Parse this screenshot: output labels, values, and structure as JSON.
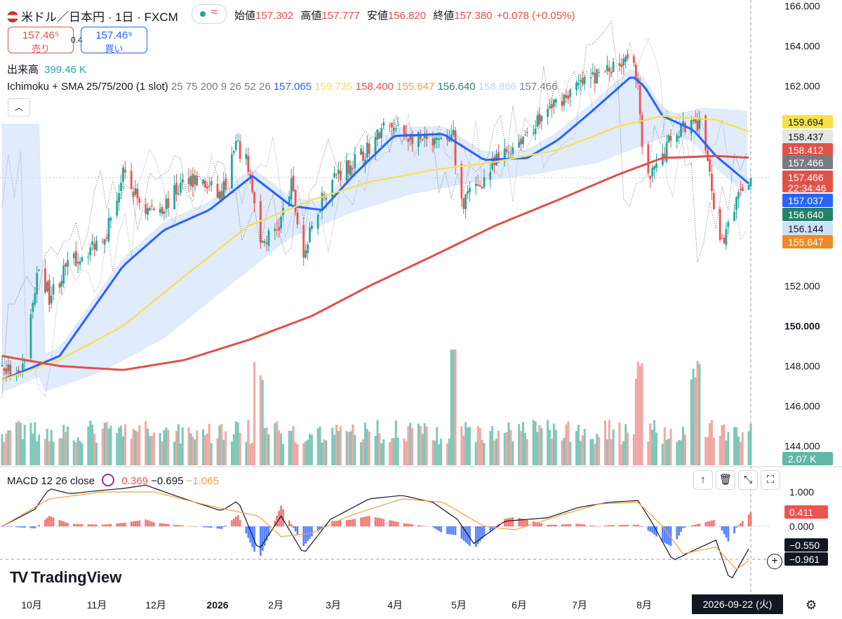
{
  "title": {
    "flag": "us-flag-icon",
    "symbol": "米ドル／日本円 · 1日 · FXCM"
  },
  "status": {
    "live_dot": "green-dot-icon",
    "wave": "≈"
  },
  "ohlc": {
    "open_label": "始値",
    "open": "157.302",
    "high_label": "高値",
    "high": "157.777",
    "low_label": "安値",
    "low": "156.820",
    "close_label": "終値",
    "close": "157.380",
    "change": "+0.078 (+0.05%)"
  },
  "quote": {
    "sell_price": "157.46⁵",
    "sell_label": "売り",
    "spread": "0.4",
    "buy_price": "157.46⁹",
    "buy_label": "買い"
  },
  "volume_legend": {
    "label": "出来高",
    "value": "399.46 K"
  },
  "indicator_legend": {
    "name": "Ichimoku + SMA 25/75/200 (1 slot)",
    "params": "25 75 200 9 26 52 26",
    "values": [
      {
        "text": "157.065",
        "color": "#2962ff"
      },
      {
        "text": "159.735",
        "color": "#f7e14a"
      },
      {
        "text": "158.400",
        "color": "#e0514a"
      },
      {
        "text": "155.647",
        "color": "#f0a040"
      },
      {
        "text": "156.640",
        "color": "#26806a"
      },
      {
        "text": "158.866",
        "color": "#bcd6f5"
      },
      {
        "text": "157.466",
        "color": "#787b86"
      }
    ]
  },
  "collapse_icon": "chevron-up-icon",
  "macd_legend": {
    "name": "MACD",
    "params": "12 26 close",
    "hist": "0.369",
    "macd": "−0.695",
    "signal": "−1.065",
    "colors": {
      "hist": "#ef5350",
      "macd": "#131722",
      "signal": "#f0a040"
    }
  },
  "macd_tools": [
    "arrow-up-icon",
    "trash-icon",
    "collapse-icon",
    "maximize-icon"
  ],
  "price_axis": {
    "ticks": [
      "166.000",
      "164.000",
      "162.000",
      "152.000",
      "150.000",
      "148.000",
      "146.000",
      "144.000"
    ],
    "ticks_bold": [
      "150.000"
    ],
    "labels": [
      {
        "text": "159.694",
        "bg": "#f7e14a",
        "fg": "#131722"
      },
      {
        "text": "158.437",
        "bg": "#e6e6e6",
        "fg": "#131722"
      },
      {
        "text": "158.412",
        "bg": "#e0514a",
        "fg": "#ffffff"
      },
      {
        "text": "157.466",
        "bg": "#787b86",
        "fg": "#ffffff"
      },
      {
        "text": "157.466",
        "bg": "#e0514a",
        "fg": "#ffffff"
      },
      {
        "text": "22:34:46",
        "bg": "#e0514a",
        "fg": "#ffffff"
      },
      {
        "text": "157.037",
        "bg": "#2962ff",
        "fg": "#ffffff"
      },
      {
        "text": "156.640",
        "bg": "#26806a",
        "fg": "#ffffff"
      },
      {
        "text": "156.144",
        "bg": "#cfe0fa",
        "fg": "#131722"
      },
      {
        "text": "155.647",
        "bg": "#f08a24",
        "fg": "#ffffff"
      },
      {
        "text": "2.07 K",
        "bg": "#5fb8a8",
        "fg": "#ffffff"
      }
    ]
  },
  "macd_axis": {
    "ticks": [
      "1.000",
      "0.000"
    ],
    "labels": [
      {
        "text": "0.411",
        "bg": "#ef5350",
        "fg": "#ffffff"
      },
      {
        "text": "−0.550",
        "bg": "#131722",
        "fg": "#ffffff"
      },
      {
        "text": "−0.961",
        "bg": "#131722",
        "fg": "#ffffff"
      }
    ]
  },
  "time_axis": {
    "labels": [
      "10月",
      "11月",
      "12月",
      "2026",
      "2月",
      "3月",
      "4月",
      "5月",
      "6月",
      "7月",
      "8月"
    ],
    "cursor_date": "2026-09-22 (火)"
  },
  "logo": {
    "mark": "TV",
    "text": "TradingView"
  },
  "settings_icon": "gear-icon",
  "add_icon": "plus-circle-icon",
  "chart_data": [
    {
      "type": "candlestick",
      "panel": "price",
      "x_start": "2025-09-22",
      "x_end": "2026-09-22",
      "ylim": [
        143,
        166
      ],
      "y_ticks": [
        144,
        146,
        148,
        150,
        152,
        162,
        164,
        166
      ],
      "x_tick_labels": [
        "10月",
        "11月",
        "12月",
        "2026",
        "2月",
        "3月",
        "4月",
        "5月",
        "6月",
        "7月",
        "8月"
      ],
      "close_path": [
        [
          "2025-09-22",
          148.0
        ],
        [
          "2025-10-01",
          147.3
        ],
        [
          "2025-10-10",
          153.0
        ],
        [
          "2025-10-15",
          151.5
        ],
        [
          "2025-10-24",
          153.0
        ],
        [
          "2025-11-05",
          154.0
        ],
        [
          "2025-11-12",
          154.8
        ],
        [
          "2025-11-20",
          157.5
        ],
        [
          "2025-12-01",
          155.8
        ],
        [
          "2025-12-10",
          156.0
        ],
        [
          "2025-12-22",
          157.5
        ],
        [
          "2026-01-07",
          156.5
        ],
        [
          "2026-01-14",
          159.0
        ],
        [
          "2026-01-20",
          158.0
        ],
        [
          "2026-01-26",
          154.0
        ],
        [
          "2026-02-04",
          155.0
        ],
        [
          "2026-02-10",
          157.0
        ],
        [
          "2026-02-16",
          153.5
        ],
        [
          "2026-02-25",
          156.5
        ],
        [
          "2026-03-04",
          157.6
        ],
        [
          "2026-03-16",
          158.5
        ],
        [
          "2026-03-28",
          160.0
        ],
        [
          "2026-04-08",
          159.5
        ],
        [
          "2026-04-20",
          159.0
        ],
        [
          "2026-04-30",
          159.5
        ],
        [
          "2026-05-02",
          156.0
        ],
        [
          "2026-05-12",
          157.0
        ],
        [
          "2026-05-22",
          158.3
        ],
        [
          "2026-06-05",
          159.7
        ],
        [
          "2026-06-20",
          161.3
        ],
        [
          "2026-07-05",
          162.3
        ],
        [
          "2026-07-18",
          163.0
        ],
        [
          "2026-07-26",
          164.0
        ],
        [
          "2026-07-29",
          162.0
        ],
        [
          "2026-08-01",
          157.0
        ],
        [
          "2026-08-08",
          158.0
        ],
        [
          "2026-08-14",
          159.5
        ],
        [
          "2026-08-20",
          160.0
        ],
        [
          "2026-08-28",
          160.0
        ],
        [
          "2026-09-02",
          158.0
        ],
        [
          "2026-09-06",
          154.0
        ],
        [
          "2026-09-12",
          155.0
        ],
        [
          "2026-09-18",
          157.0
        ],
        [
          "2026-09-22",
          157.38
        ]
      ],
      "last_candle": {
        "open": 157.302,
        "high": 157.777,
        "low": 156.82,
        "close": 157.38
      },
      "series": [
        {
          "name": "SMA 25",
          "color": "#2962ff",
          "last": 157.037,
          "path": [
            [
              "2025-09-22",
              147.3
            ],
            [
              "2025-10-20",
              148.5
            ],
            [
              "2025-11-20",
              153.0
            ],
            [
              "2025-12-10",
              154.8
            ],
            [
              "2026-01-01",
              155.8
            ],
            [
              "2026-01-22",
              157.5
            ],
            [
              "2026-02-10",
              156.0
            ],
            [
              "2026-02-25",
              155.8
            ],
            [
              "2026-03-12",
              157.5
            ],
            [
              "2026-04-01",
              159.5
            ],
            [
              "2026-04-25",
              159.6
            ],
            [
              "2026-05-15",
              158.3
            ],
            [
              "2026-06-05",
              158.4
            ],
            [
              "2026-06-20",
              159.3
            ],
            [
              "2026-07-05",
              160.6
            ],
            [
              "2026-07-26",
              162.5
            ],
            [
              "2026-08-01",
              162.0
            ],
            [
              "2026-08-10",
              160.5
            ],
            [
              "2026-08-25",
              159.8
            ],
            [
              "2026-09-05",
              158.5
            ],
            [
              "2026-09-22",
              157.04
            ]
          ]
        },
        {
          "name": "SMA 75",
          "color": "#f7e14a",
          "last": 159.694,
          "path": [
            [
              "2025-09-22",
              147.3
            ],
            [
              "2025-10-20",
              148.3
            ],
            [
              "2025-11-20",
              150.0
            ],
            [
              "2025-12-20",
              152.5
            ],
            [
              "2026-01-20",
              155.0
            ],
            [
              "2026-02-20",
              156.3
            ],
            [
              "2026-03-20",
              157.2
            ],
            [
              "2026-04-20",
              157.8
            ],
            [
              "2026-05-20",
              158.2
            ],
            [
              "2026-06-20",
              158.8
            ],
            [
              "2026-07-20",
              160.0
            ],
            [
              "2026-08-10",
              160.5
            ],
            [
              "2026-09-05",
              160.3
            ],
            [
              "2026-09-22",
              159.69
            ]
          ]
        },
        {
          "name": "SMA 200",
          "color": "#e0514a",
          "last": 158.412,
          "path": [
            [
              "2025-09-22",
              148.5
            ],
            [
              "2025-10-20",
              148.0
            ],
            [
              "2025-11-20",
              147.8
            ],
            [
              "2025-12-20",
              148.3
            ],
            [
              "2026-01-20",
              149.3
            ],
            [
              "2026-02-20",
              150.5
            ],
            [
              "2026-03-20",
              152.0
            ],
            [
              "2026-04-20",
              153.5
            ],
            [
              "2026-05-20",
              155.0
            ],
            [
              "2026-06-20",
              156.3
            ],
            [
              "2026-07-20",
              157.6
            ],
            [
              "2026-08-10",
              158.4
            ],
            [
              "2026-09-05",
              158.5
            ],
            [
              "2026-09-22",
              158.41
            ]
          ]
        },
        {
          "name": "Ichimoku cloud",
          "color": "#cfe0fa",
          "lagging_span": 157.466,
          "leading_span_a": 156.144,
          "leading_span_b": 158.437
        }
      ],
      "volume": {
        "last": "2.07 K",
        "up_color": "#7fc7b9",
        "down_color": "#f0a8a4",
        "spikes": [
          [
            "2026-01-25",
            "high"
          ],
          [
            "2026-05-01",
            "highest"
          ],
          [
            "2026-07-30",
            "high"
          ],
          [
            "2026-08-26",
            "high"
          ]
        ]
      }
    },
    {
      "type": "line+histogram",
      "panel": "macd",
      "name": "MACD 12 26 close",
      "ylim": [
        -1.6,
        1.4
      ],
      "y_ticks": [
        0.0,
        1.0
      ],
      "macd_last": -0.55,
      "signal_last": -0.961,
      "hist_last": 0.411,
      "macd_path": [
        [
          "2025-09-22",
          0.0
        ],
        [
          "2025-10-08",
          0.5
        ],
        [
          "2025-10-15",
          1.1
        ],
        [
          "2025-10-25",
          0.95
        ],
        [
          "2025-11-10",
          1.05
        ],
        [
          "2025-11-20",
          1.1
        ],
        [
          "2025-12-01",
          1.2
        ],
        [
          "2025-12-15",
          0.9
        ],
        [
          "2025-12-25",
          0.7
        ],
        [
          "2026-01-07",
          0.45
        ],
        [
          "2026-01-15",
          0.75
        ],
        [
          "2026-01-25",
          -0.7
        ],
        [
          "2026-02-05",
          0.3
        ],
        [
          "2026-02-16",
          -0.8
        ],
        [
          "2026-03-01",
          0.2
        ],
        [
          "2026-03-20",
          0.8
        ],
        [
          "2026-04-05",
          0.9
        ],
        [
          "2026-04-20",
          0.7
        ],
        [
          "2026-05-02",
          0.2
        ],
        [
          "2026-05-10",
          -0.5
        ],
        [
          "2026-05-25",
          0.15
        ],
        [
          "2026-06-15",
          0.25
        ],
        [
          "2026-06-30",
          0.55
        ],
        [
          "2026-07-15",
          0.7
        ],
        [
          "2026-07-29",
          0.75
        ],
        [
          "2026-08-05",
          0.1
        ],
        [
          "2026-08-15",
          -1.0
        ],
        [
          "2026-08-25",
          -0.7
        ],
        [
          "2026-09-05",
          -0.4
        ],
        [
          "2026-09-12",
          -1.6
        ],
        [
          "2026-09-22",
          -0.55
        ]
      ],
      "signal_path": [
        [
          "2025-09-22",
          0.0
        ],
        [
          "2025-10-15",
          0.8
        ],
        [
          "2025-11-10",
          1.0
        ],
        [
          "2025-12-05",
          1.0
        ],
        [
          "2026-01-01",
          0.6
        ],
        [
          "2026-01-25",
          0.3
        ],
        [
          "2026-02-05",
          -0.3
        ],
        [
          "2026-02-20",
          -0.2
        ],
        [
          "2026-03-10",
          0.3
        ],
        [
          "2026-04-05",
          0.8
        ],
        [
          "2026-04-25",
          0.7
        ],
        [
          "2026-05-15",
          0.0
        ],
        [
          "2026-05-30",
          -0.1
        ],
        [
          "2026-06-20",
          0.3
        ],
        [
          "2026-07-10",
          0.65
        ],
        [
          "2026-07-29",
          0.7
        ],
        [
          "2026-08-10",
          0.0
        ],
        [
          "2026-08-20",
          -0.8
        ],
        [
          "2026-09-05",
          -0.6
        ],
        [
          "2026-09-15",
          -1.25
        ],
        [
          "2026-09-22",
          -0.96
        ]
      ]
    }
  ]
}
